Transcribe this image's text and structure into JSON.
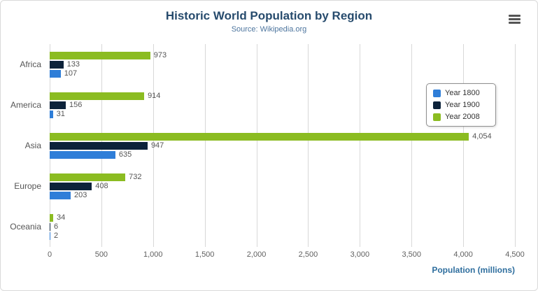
{
  "header": {
    "title": "Historic World Population by Region",
    "subtitle": "Source: Wikipedia.org",
    "menu_icon": "hamburger-menu-icon"
  },
  "chart_data": {
    "type": "bar",
    "orientation": "horizontal",
    "title": "Historic World Population by Region",
    "subtitle": "Source: Wikipedia.org",
    "categories": [
      "Africa",
      "America",
      "Asia",
      "Europe",
      "Oceania"
    ],
    "series": [
      {
        "name": "Year 1800",
        "color": "#2f7ed8",
        "values": [
          107,
          31,
          635,
          203,
          2
        ]
      },
      {
        "name": "Year 1900",
        "color": "#0d233a",
        "values": [
          133,
          156,
          947,
          408,
          6
        ]
      },
      {
        "name": "Year 2008",
        "color": "#8bbc21",
        "values": [
          973,
          914,
          4054,
          732,
          34
        ]
      }
    ],
    "bar_order_top_to_bottom": [
      "Year 2008",
      "Year 1900",
      "Year 1800"
    ],
    "xlabel": "Population (millions)",
    "ylabel": "",
    "xlim": [
      0,
      4500
    ],
    "tick_interval": 500,
    "ticks": [
      "0",
      "500",
      "1,000",
      "1,500",
      "2,000",
      "2,500",
      "3,000",
      "3,500",
      "4,000",
      "4,500"
    ],
    "grid": true,
    "legend_position": "right-floating",
    "data_labels": true
  },
  "colors": {
    "title": "#274b6d",
    "subtitle": "#4d759e",
    "axis_title": "#2e6e9e",
    "gridline": "#d8d8d8",
    "label_text": "#555555"
  }
}
